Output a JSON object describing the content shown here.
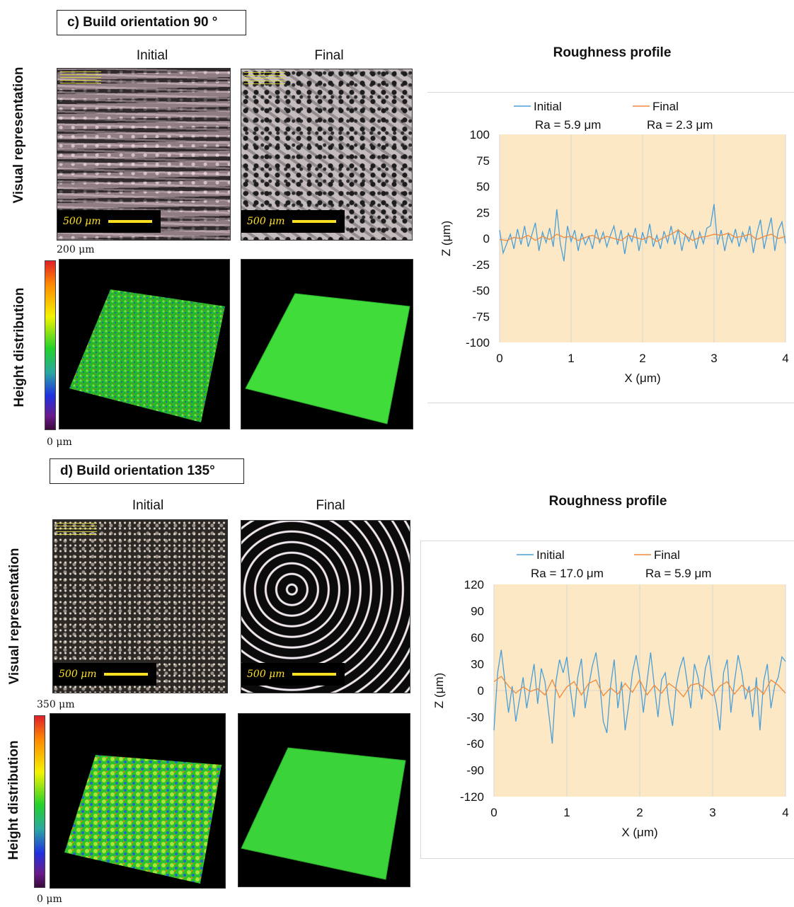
{
  "sections": [
    {
      "title": "c) Build orientation 90  °",
      "col_initial": "Initial",
      "col_final": "Final",
      "row_visual": "Visual representation",
      "row_height": "Height distribution",
      "scalebar": "500 μm",
      "colorbar_max": "200 μm",
      "colorbar_min": "0  μm",
      "chart_title": "Roughness profile"
    },
    {
      "title": "d) Build orientation 135°",
      "col_initial": "Initial",
      "col_final": "Final",
      "row_visual": "Visual representation",
      "row_height": "Height distribution",
      "scalebar": "500 μm",
      "colorbar_max": "350 μm",
      "colorbar_min": "0 μm",
      "chart_title": "Roughness profile"
    }
  ],
  "chart_data": [
    {
      "type": "line",
      "title": "Roughness profile",
      "xlabel": "X (μm)",
      "ylabel": "Z (μm)",
      "xlim": [
        0,
        4
      ],
      "ylim": [
        -100,
        100
      ],
      "xticks": [
        0,
        1,
        2,
        3,
        4
      ],
      "yticks": [
        100,
        75,
        50,
        25,
        0,
        -25,
        -50,
        -75,
        -100
      ],
      "grid": "vertical",
      "legend": "top",
      "plot_background": "#fce8c4",
      "series": [
        {
          "name": "Initial",
          "ra_label": "Ra =  5.9 μm",
          "color": "#4a9fd8",
          "x": [
            0.0,
            0.05,
            0.1,
            0.15,
            0.2,
            0.25,
            0.3,
            0.35,
            0.4,
            0.45,
            0.5,
            0.55,
            0.6,
            0.65,
            0.7,
            0.75,
            0.8,
            0.85,
            0.9,
            0.95,
            1.0,
            1.05,
            1.1,
            1.15,
            1.2,
            1.25,
            1.3,
            1.35,
            1.4,
            1.45,
            1.5,
            1.55,
            1.6,
            1.65,
            1.7,
            1.75,
            1.8,
            1.85,
            1.9,
            1.95,
            2.0,
            2.05,
            2.1,
            2.15,
            2.2,
            2.25,
            2.3,
            2.35,
            2.4,
            2.45,
            2.5,
            2.55,
            2.6,
            2.65,
            2.7,
            2.75,
            2.8,
            2.85,
            2.9,
            2.95,
            3.0,
            3.05,
            3.1,
            3.15,
            3.2,
            3.25,
            3.3,
            3.35,
            3.4,
            3.45,
            3.5,
            3.55,
            3.6,
            3.65,
            3.7,
            3.75,
            3.8,
            3.85,
            3.9,
            3.95,
            4.0
          ],
          "y": [
            8,
            -14,
            -5,
            4,
            -10,
            9,
            -6,
            12,
            -8,
            3,
            15,
            -12,
            6,
            -4,
            10,
            -8,
            28,
            -5,
            -22,
            12,
            -3,
            8,
            -12,
            5,
            -6,
            2,
            -10,
            9,
            -4,
            6,
            -8,
            3,
            12,
            -6,
            8,
            -15,
            5,
            -3,
            10,
            -12,
            6,
            -5,
            14,
            -8,
            3,
            -10,
            7,
            -4,
            12,
            -6,
            9,
            -12,
            4,
            -3,
            8,
            -10,
            6,
            -5,
            10,
            12,
            33,
            -6,
            8,
            -12,
            5,
            -4,
            9,
            -8,
            6,
            -3,
            12,
            -14,
            5,
            18,
            -10,
            6,
            20,
            -12,
            8,
            16,
            -5
          ]
        },
        {
          "name": "Final",
          "ra_label": "Ra =  2.3 μm",
          "color": "#f08a3c",
          "x": [
            0.0,
            0.1,
            0.2,
            0.3,
            0.4,
            0.5,
            0.6,
            0.7,
            0.8,
            0.9,
            1.0,
            1.1,
            1.2,
            1.3,
            1.4,
            1.5,
            1.6,
            1.7,
            1.8,
            1.9,
            2.0,
            2.1,
            2.2,
            2.3,
            2.4,
            2.5,
            2.6,
            2.7,
            2.8,
            2.9,
            3.0,
            3.1,
            3.2,
            3.3,
            3.4,
            3.5,
            3.6,
            3.7,
            3.8,
            3.9,
            4.0
          ],
          "y": [
            -1,
            -2,
            1,
            0,
            3,
            -2,
            2,
            -1,
            4,
            1,
            2,
            -2,
            1,
            3,
            -1,
            2,
            0,
            -2,
            3,
            1,
            -1,
            2,
            -3,
            1,
            4,
            8,
            3,
            -2,
            1,
            2,
            4,
            3,
            5,
            1,
            2,
            4,
            -1,
            2,
            4,
            0,
            2
          ]
        }
      ]
    },
    {
      "type": "line",
      "title": "Roughness profile",
      "xlabel": "X (μm)",
      "ylabel": "Z (μm)",
      "xlim": [
        0,
        4
      ],
      "ylim": [
        -120,
        120
      ],
      "xticks": [
        0,
        1,
        2,
        3,
        4
      ],
      "yticks": [
        120,
        90,
        60,
        30,
        0,
        -30,
        -60,
        -90,
        -120
      ],
      "grid": "vertical",
      "legend": "top",
      "plot_background": "#fce8c4",
      "series": [
        {
          "name": "Initial",
          "ra_label": "Ra =  17.0 μm",
          "color": "#4a9fd8",
          "x": [
            0.0,
            0.05,
            0.1,
            0.15,
            0.2,
            0.25,
            0.3,
            0.35,
            0.4,
            0.45,
            0.5,
            0.55,
            0.6,
            0.65,
            0.7,
            0.75,
            0.8,
            0.85,
            0.9,
            0.95,
            1.0,
            1.05,
            1.1,
            1.15,
            1.2,
            1.25,
            1.3,
            1.35,
            1.4,
            1.45,
            1.5,
            1.55,
            1.6,
            1.65,
            1.7,
            1.75,
            1.8,
            1.85,
            1.9,
            1.95,
            2.0,
            2.05,
            2.1,
            2.15,
            2.2,
            2.25,
            2.3,
            2.35,
            2.4,
            2.45,
            2.5,
            2.55,
            2.6,
            2.65,
            2.7,
            2.75,
            2.8,
            2.85,
            2.9,
            2.95,
            3.0,
            3.05,
            3.1,
            3.15,
            3.2,
            3.25,
            3.3,
            3.35,
            3.4,
            3.45,
            3.5,
            3.55,
            3.6,
            3.65,
            3.7,
            3.75,
            3.8,
            3.85,
            3.9,
            3.95,
            4.0
          ],
          "y": [
            -45,
            20,
            46,
            10,
            -25,
            5,
            -35,
            -10,
            15,
            -20,
            5,
            30,
            -15,
            25,
            10,
            -25,
            -60,
            10,
            35,
            20,
            38,
            0,
            -30,
            15,
            36,
            -20,
            5,
            28,
            43,
            10,
            -35,
            -48,
            5,
            35,
            -20,
            10,
            -45,
            -15,
            20,
            40,
            15,
            -25,
            10,
            43,
            5,
            -30,
            12,
            20,
            -15,
            -40,
            5,
            25,
            38,
            10,
            -20,
            30,
            15,
            -10,
            25,
            40,
            5,
            -15,
            -45,
            20,
            35,
            -25,
            10,
            40,
            20,
            -10,
            5,
            -30,
            15,
            -45,
            10,
            30,
            -20,
            5,
            15,
            38,
            33
          ]
        },
        {
          "name": "Final",
          "ra_label": "Ra =  5.9 μm",
          "color": "#f08a3c",
          "x": [
            0.0,
            0.1,
            0.2,
            0.3,
            0.4,
            0.5,
            0.6,
            0.7,
            0.8,
            0.9,
            1.0,
            1.1,
            1.2,
            1.3,
            1.4,
            1.5,
            1.6,
            1.7,
            1.8,
            1.9,
            2.0,
            2.1,
            2.2,
            2.3,
            2.4,
            2.5,
            2.6,
            2.7,
            2.8,
            2.9,
            3.0,
            3.1,
            3.2,
            3.3,
            3.4,
            3.5,
            3.6,
            3.7,
            3.8,
            3.9,
            4.0
          ],
          "y": [
            10,
            16,
            5,
            -3,
            4,
            -1,
            2,
            -5,
            12,
            -8,
            4,
            10,
            -5,
            8,
            12,
            -6,
            3,
            -4,
            8,
            -2,
            12,
            -5,
            6,
            -3,
            8,
            2,
            -7,
            6,
            8,
            2,
            -6,
            5,
            10,
            -4,
            6,
            -2,
            4,
            -4,
            12,
            6,
            -3
          ]
        }
      ]
    }
  ]
}
